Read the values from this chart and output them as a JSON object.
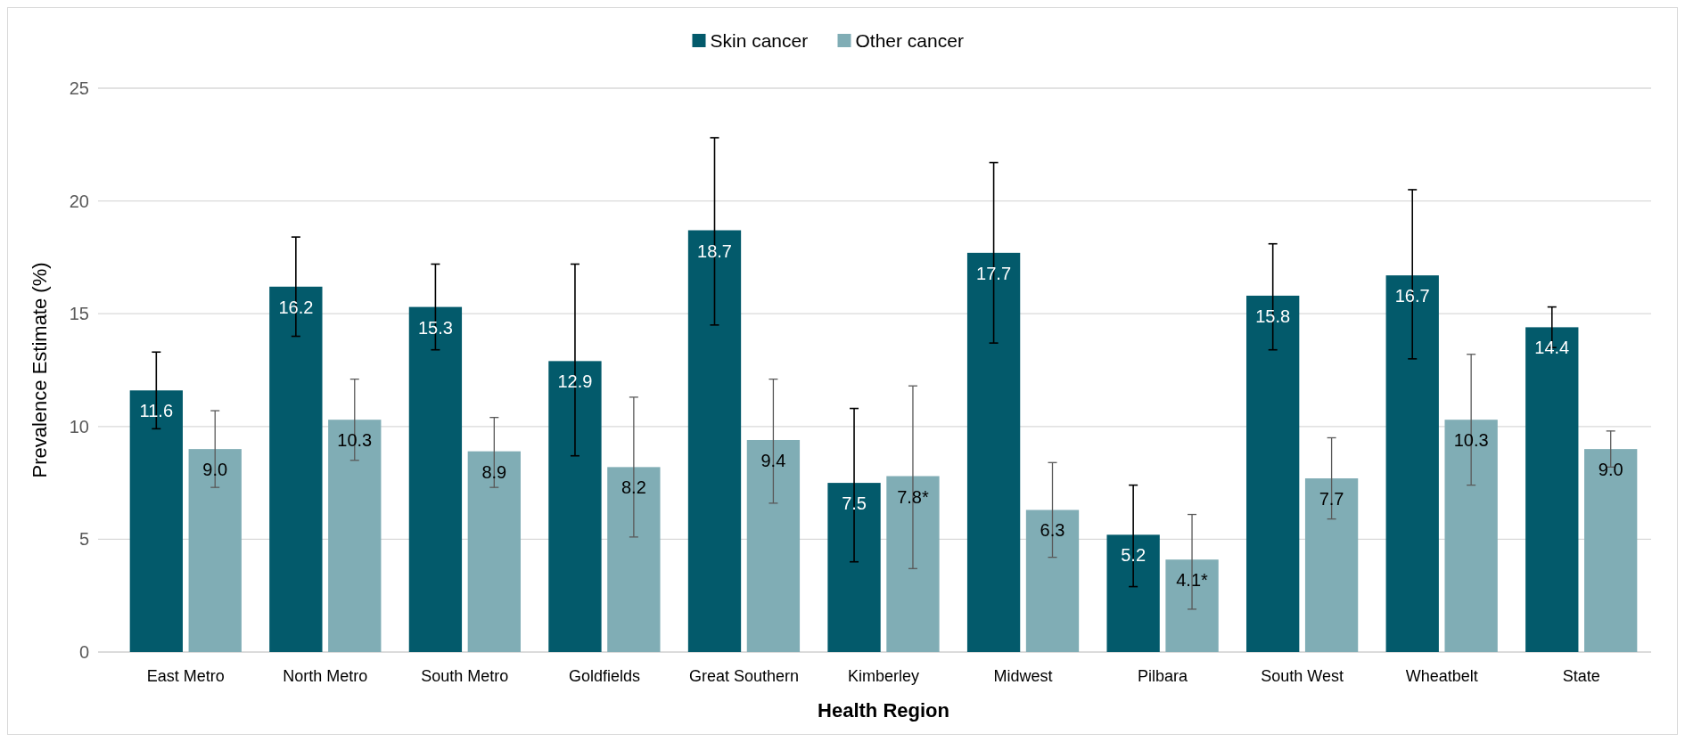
{
  "chart_data": {
    "type": "bar",
    "xlabel": "Health Region",
    "ylabel": "Prevalence Estimate (%)",
    "categories": [
      "East Metro",
      "North Metro",
      "South Metro",
      "Goldfields",
      "Great Southern",
      "Kimberley",
      "Midwest",
      "Pilbara",
      "South West",
      "Wheatbelt",
      "State"
    ],
    "series": [
      {
        "name": "Skin cancer",
        "color": "#035a6b",
        "values": [
          11.6,
          16.2,
          15.3,
          12.9,
          18.7,
          7.5,
          17.7,
          5.2,
          15.8,
          16.7,
          14.4
        ],
        "value_labels": [
          "11.6",
          "16.2",
          "15.3",
          "12.9",
          "18.7",
          "7.5",
          "17.7",
          "5.2",
          "15.8",
          "16.7",
          "14.4"
        ],
        "errors": [
          [
            9.9,
            13.3
          ],
          [
            14.0,
            18.4
          ],
          [
            13.4,
            17.2
          ],
          [
            8.7,
            17.2
          ],
          [
            14.5,
            22.8
          ],
          [
            4.0,
            10.8
          ],
          [
            13.7,
            21.7
          ],
          [
            2.9,
            7.4
          ],
          [
            13.4,
            18.1
          ],
          [
            13.0,
            20.5
          ],
          [
            13.5,
            15.3
          ]
        ]
      },
      {
        "name": "Other cancer",
        "color": "#80adb5",
        "values": [
          9.0,
          10.3,
          8.9,
          8.2,
          9.4,
          7.8,
          6.3,
          4.1,
          7.7,
          10.3,
          9.0
        ],
        "value_labels": [
          "9.0",
          "10.3",
          "8.9",
          "8.2",
          "9.4",
          "7.8*",
          "6.3",
          "4.1*",
          "7.7",
          "10.3",
          "9.0"
        ],
        "errors": [
          [
            7.3,
            10.7
          ],
          [
            8.5,
            12.1
          ],
          [
            7.3,
            10.4
          ],
          [
            5.1,
            11.3
          ],
          [
            6.6,
            12.1
          ],
          [
            3.7,
            11.8
          ],
          [
            4.2,
            8.4
          ],
          [
            1.9,
            6.1
          ],
          [
            5.9,
            9.5
          ],
          [
            7.4,
            13.2
          ],
          [
            8.2,
            9.8
          ]
        ]
      }
    ],
    "ylim": [
      0,
      25
    ],
    "yticks": [
      0,
      5,
      10,
      15,
      20,
      25
    ],
    "grid": "y",
    "legend": "top"
  }
}
